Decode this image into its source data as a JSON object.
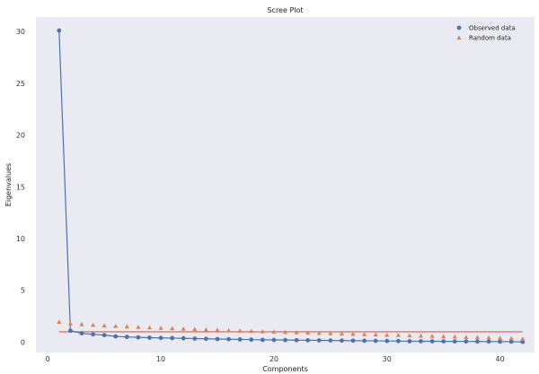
{
  "chart_data": {
    "type": "scatter",
    "title": "Scree Plot",
    "xlabel": "Components",
    "ylabel": "Eigenvalues",
    "xlim": [
      -1.05,
      43.05
    ],
    "ylim": [
      -1.0,
      31.4
    ],
    "xticks": [
      0,
      10,
      20,
      30,
      40
    ],
    "yticks": [
      0,
      5,
      10,
      15,
      20,
      25,
      30
    ],
    "grid": false,
    "legend": "top-right",
    "reference_line": {
      "y": 1.0,
      "x_from": 1,
      "x_to": 42,
      "color": "#e0766b"
    },
    "series": [
      {
        "name": "Observed data",
        "marker": "circle",
        "connected": true,
        "color": "#4c72b0",
        "x": [
          1,
          2,
          3,
          4,
          5,
          6,
          7,
          8,
          9,
          10,
          11,
          12,
          13,
          14,
          15,
          16,
          17,
          18,
          19,
          20,
          21,
          22,
          23,
          24,
          25,
          26,
          27,
          28,
          29,
          30,
          31,
          32,
          33,
          34,
          35,
          36,
          37,
          38,
          39,
          40,
          41,
          42
        ],
        "y": [
          30.1,
          1.1,
          0.85,
          0.75,
          0.68,
          0.55,
          0.5,
          0.46,
          0.43,
          0.41,
          0.39,
          0.37,
          0.34,
          0.32,
          0.3,
          0.28,
          0.26,
          0.24,
          0.22,
          0.21,
          0.2,
          0.19,
          0.18,
          0.17,
          0.16,
          0.15,
          0.14,
          0.13,
          0.12,
          0.11,
          0.1,
          0.09,
          0.085,
          0.08,
          0.075,
          0.07,
          0.065,
          0.06,
          0.055,
          0.05,
          0.045,
          0.02
        ]
      },
      {
        "name": "Random data",
        "marker": "triangle",
        "connected": false,
        "color": "#dd8452",
        "x": [
          1,
          2,
          3,
          4,
          5,
          6,
          7,
          8,
          9,
          10,
          11,
          12,
          13,
          14,
          15,
          16,
          17,
          18,
          19,
          20,
          21,
          22,
          23,
          24,
          25,
          26,
          27,
          28,
          29,
          30,
          31,
          32,
          33,
          34,
          35,
          36,
          37,
          38,
          39,
          40,
          41,
          42
        ],
        "y": [
          1.95,
          1.8,
          1.72,
          1.66,
          1.6,
          1.55,
          1.5,
          1.45,
          1.41,
          1.37,
          1.33,
          1.29,
          1.25,
          1.21,
          1.17,
          1.13,
          1.1,
          1.06,
          1.03,
          1.0,
          0.97,
          0.94,
          0.91,
          0.88,
          0.85,
          0.82,
          0.79,
          0.76,
          0.73,
          0.7,
          0.67,
          0.64,
          0.61,
          0.58,
          0.55,
          0.52,
          0.49,
          0.46,
          0.43,
          0.4,
          0.37,
          0.32
        ]
      }
    ]
  }
}
